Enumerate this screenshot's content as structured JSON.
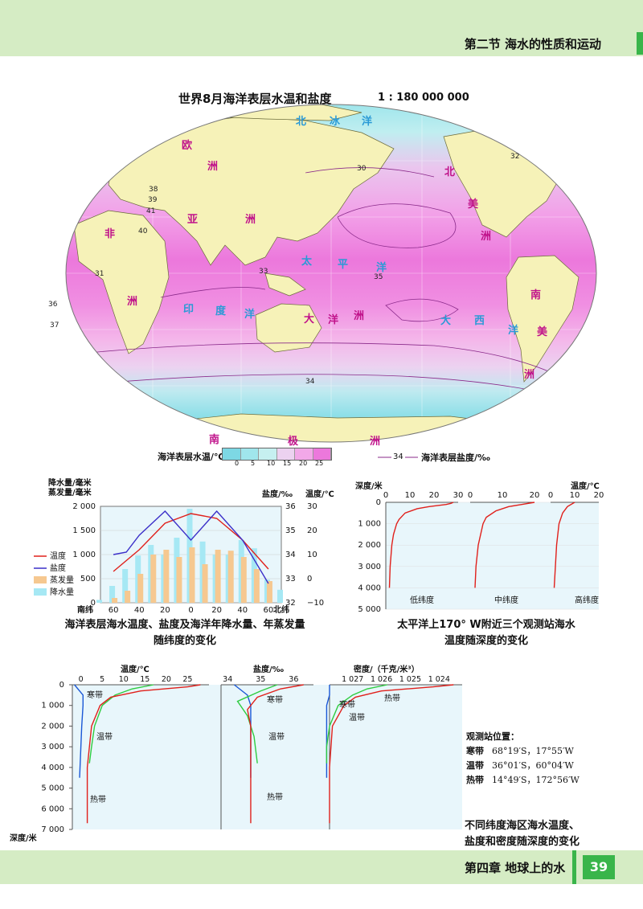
{
  "header": {
    "section": "第二节  海水的性质和运动"
  },
  "footer": {
    "chapter": "第四章  地球上的水",
    "page": "39"
  },
  "map": {
    "title": "世界8月海洋表层水温和盐度",
    "scale": "1 : 180 000 000",
    "legend_temp_label": "海洋表层水温/℃",
    "legend_temp_ticks": [
      "0",
      "5",
      "10",
      "15",
      "20",
      "25"
    ],
    "legend_salinity_label": "海洋表层盐度/‰",
    "legend_salinity_sample": "34",
    "place_names": [
      "北",
      "冰",
      "洋",
      "欧",
      "洲",
      "亚",
      "洲",
      "非",
      "洲",
      "北",
      "美",
      "洲",
      "南",
      "美",
      "洲",
      "大",
      "洋",
      "洲",
      "太",
      "平",
      "洋",
      "大",
      "西",
      "洋",
      "印",
      "度",
      "洋",
      "南",
      "极",
      "洲"
    ],
    "isohaline_labels": [
      "35",
      "34",
      "33",
      "32",
      "36",
      "37",
      "38",
      "39",
      "40",
      "41",
      "31",
      "30"
    ]
  },
  "chart1": {
    "caption_line1": "海洋表层海水温度、盐度及海洋年降水量、年蒸发量",
    "caption_line2": "随纬度的变化",
    "left_axis_title_1": "降水量/毫米",
    "left_axis_title_2": "蒸发量/毫米",
    "salinity_axis_title": "盐度/‰",
    "temp_axis_title": "温度/℃",
    "legend": [
      "温度",
      "盐度",
      "蒸发量",
      "降水量"
    ],
    "x_left_label": "南纬",
    "x_right_label": "北纬",
    "left_ticks": [
      "0",
      "500",
      "1 000",
      "1 500",
      "2 000"
    ],
    "salinity_ticks": [
      "32",
      "33",
      "34",
      "35",
      "36"
    ],
    "temp_ticks": [
      "−10",
      "0",
      "10",
      "20",
      "30"
    ],
    "chart_data": {
      "type": "bar",
      "title": "",
      "categories": [
        "-70",
        "-60",
        "-50",
        "-40",
        "-30",
        "-20",
        "-10",
        "0",
        "10",
        "20",
        "30",
        "40",
        "50",
        "60",
        "70"
      ],
      "x_tick_labels": [
        "60",
        "40",
        "20",
        "0",
        "20",
        "40",
        "60"
      ],
      "series": [
        {
          "name": "降水量",
          "values": [
            60,
            350,
            700,
            980,
            1200,
            1000,
            1350,
            1950,
            1270,
            1000,
            1000,
            1300,
            1130,
            480,
            270
          ]
        },
        {
          "name": "蒸发量",
          "values": [
            0,
            100,
            250,
            600,
            1000,
            1100,
            950,
            1150,
            800,
            1100,
            1080,
            950,
            700,
            450,
            0
          ]
        },
        {
          "name": "温度",
          "x": [
            -60,
            -40,
            -20,
            0,
            20,
            40,
            60
          ],
          "values": [
            3,
            12,
            23,
            27,
            25,
            16,
            4
          ]
        },
        {
          "name": "盐度",
          "x": [
            -60,
            -50,
            -40,
            -20,
            0,
            20,
            40,
            60
          ],
          "values": [
            34.0,
            34.1,
            34.8,
            35.8,
            34.6,
            35.8,
            34.6,
            32.8
          ]
        }
      ]
    }
  },
  "chart2": {
    "caption_line1": "太平洋上170° W附近三个观测站海水",
    "caption_line2": "温度随深度的变化",
    "depth_title": "深度/米",
    "temp_title": "温度/℃",
    "depth_ticks": [
      "0",
      "1 000",
      "2 000",
      "3 000",
      "4 000",
      "5 000"
    ],
    "temp_ticks": [
      "0",
      "10",
      "20",
      "30"
    ],
    "panel_labels": [
      "低纬度",
      "中纬度",
      "高纬度"
    ],
    "chart_data": {
      "type": "line",
      "xlabel": "温度/℃",
      "ylabel": "深度/米",
      "series": [
        {
          "name": "低纬度",
          "depth": [
            0,
            50,
            100,
            200,
            300,
            500,
            800,
            1000,
            1500,
            2000,
            3000,
            4000
          ],
          "temp": [
            28,
            27,
            25,
            18,
            13,
            8,
            5.5,
            4.5,
            3.2,
            2.5,
            1.8,
            1.5
          ]
        },
        {
          "name": "中纬度",
          "depth": [
            0,
            100,
            200,
            400,
            700,
            1000,
            2000,
            3000,
            4000
          ],
          "temp": [
            20,
            16,
            12,
            8,
            5,
            4,
            2.5,
            1.8,
            1.5
          ]
        },
        {
          "name": "高纬度",
          "depth": [
            0,
            200,
            500,
            1000,
            2000,
            3000,
            4000
          ],
          "temp": [
            10,
            7,
            5,
            3.5,
            2.5,
            2,
            1.5
          ]
        }
      ]
    }
  },
  "chart3": {
    "caption_line1": "不同纬度海区海水温度、",
    "caption_line2": "盐度和密度随深度的变化",
    "depth_ticks": [
      "0",
      "1 000",
      "2 000",
      "3 000",
      "4 000",
      "5 000",
      "6 000",
      "7 000"
    ],
    "depth_title": "深度/米",
    "temp_title": "温度/℃",
    "temp_ticks": [
      "0",
      "5",
      "10",
      "15",
      "20",
      "25"
    ],
    "salinity_title": "盐度/‰",
    "salinity_ticks": [
      "34",
      "35",
      "36"
    ],
    "density_title": "密度/（千克/米³）",
    "density_ticks": [
      "1 027",
      "1 026",
      "1 025",
      "1 024"
    ],
    "zone_labels": {
      "cold": "寒带",
      "temperate": "温带",
      "tropic": "热带"
    },
    "station_title": "观测站位置：",
    "stations": [
      {
        "zone": "寒带",
        "coords": "68°19′S，17°55′W"
      },
      {
        "zone": "温带",
        "coords": "36°01′S，60°04′W"
      },
      {
        "zone": "热带",
        "coords": "14°49′S，172°56′W"
      }
    ],
    "colors": {
      "cold": "#1a57d6",
      "temperate": "#2ecc40",
      "tropic": "#e0201b"
    },
    "chart_data": {
      "type": "line",
      "panels": [
        {
          "name": "温度",
          "series": [
            {
              "name": "寒带",
              "depth": [
                0,
                500,
                1000,
                2000,
                3000,
                4500
              ],
              "values": [
                -1.5,
                0.5,
                0.5,
                0.2,
                0,
                -0.3
              ]
            },
            {
              "name": "温带",
              "depth": [
                0,
                200,
                500,
                1000,
                2000,
                3000,
                3800
              ],
              "values": [
                17,
                12,
                8,
                5,
                3.2,
                2.5,
                2
              ]
            },
            {
              "name": "热带",
              "depth": [
                0,
                100,
                300,
                600,
                1000,
                2000,
                4000,
                6700
              ],
              "values": [
                28,
                25,
                14,
                7,
                4.5,
                2.5,
                1.5,
                1.5
              ]
            }
          ]
        },
        {
          "name": "盐度",
          "series": [
            {
              "name": "寒带",
              "depth": [
                0,
                500,
                1000,
                2000,
                3000,
                4500
              ],
              "values": [
                34.2,
                34.6,
                34.7,
                34.7,
                34.7,
                34.7
              ]
            },
            {
              "name": "温带",
              "depth": [
                0,
                300,
                800,
                1500,
                2500,
                3800
              ],
              "values": [
                35.5,
                35.0,
                34.3,
                34.6,
                34.8,
                34.9
              ]
            },
            {
              "name": "热带",
              "depth": [
                0,
                200,
                600,
                1200,
                2000,
                4000,
                6700
              ],
              "values": [
                36.3,
                35.6,
                34.9,
                34.6,
                34.7,
                34.7,
                34.7
              ]
            }
          ]
        },
        {
          "name": "密度",
          "series": [
            {
              "name": "寒带",
              "depth": [
                0,
                500,
                1000,
                2000,
                3000,
                4500
              ],
              "values": [
                1027.8,
                1027.8,
                1027.9,
                1027.9,
                1027.9,
                1027.9
              ]
            },
            {
              "name": "温带",
              "depth": [
                0,
                200,
                500,
                1000,
                2000,
                3000,
                3800
              ],
              "values": [
                1025.8,
                1026.5,
                1027.0,
                1027.5,
                1027.8,
                1027.9,
                1027.9
              ]
            },
            {
              "name": "热带",
              "depth": [
                0,
                100,
                300,
                600,
                1000,
                2000,
                4000,
                6700
              ],
              "values": [
                1023.5,
                1024.2,
                1026.0,
                1026.9,
                1027.3,
                1027.7,
                1027.8,
                1027.8
              ]
            }
          ]
        }
      ]
    }
  }
}
